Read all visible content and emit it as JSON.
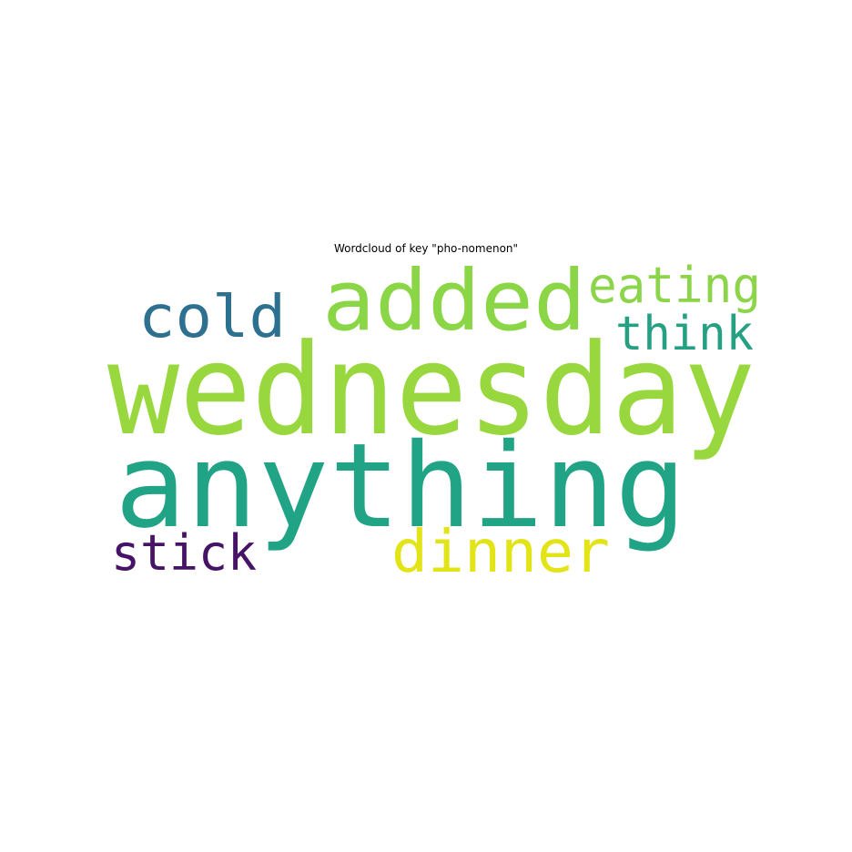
{
  "figure": {
    "title": "Wordcloud of key \"pho-nomenon\""
  },
  "wordcloud": {
    "words": [
      {
        "text": "wednesday",
        "color": "#98d83e"
      },
      {
        "text": "anything",
        "color": "#21a385"
      },
      {
        "text": "added",
        "color": "#8bd646"
      },
      {
        "text": "eating",
        "color": "#8cd54a"
      },
      {
        "text": "cold",
        "color": "#2d7090"
      },
      {
        "text": "think",
        "color": "#25a083"
      },
      {
        "text": "dinner",
        "color": "#e2e418"
      },
      {
        "text": "stick",
        "color": "#461366"
      }
    ]
  }
}
